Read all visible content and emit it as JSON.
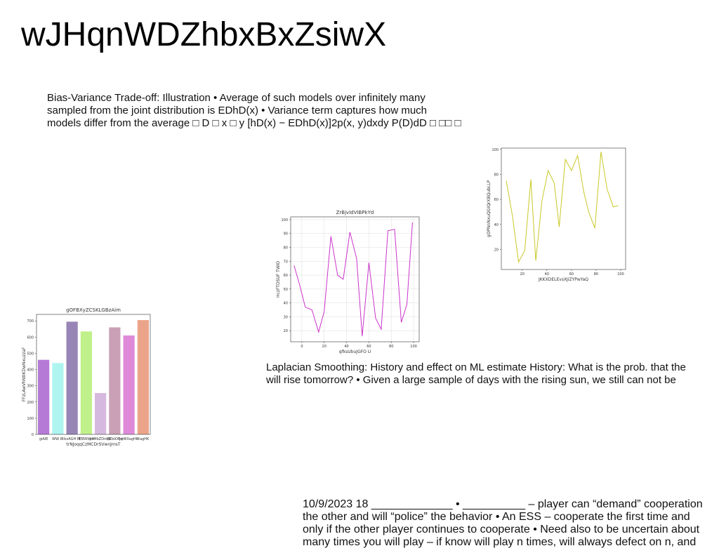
{
  "title": "wJHqnWDZhbxBxZsiwX",
  "paragraphs": [
    {
      "lines": [
        "Bias-Variance Trade-off: Illustration • Average of such models over infinitely many",
        "sampled from the joint distribution is EDhD(x) • Variance term captures how much",
        "models differ from the average □ D □ x □ y [hD(x) − EDhD(x)]2p(x, y)dxdy P(D)dD □ □□ □"
      ]
    },
    {
      "lines": [
        "Laplacian Smoothing: History and effect on ML estimate History: What is the prob. that the",
        "will rise tomorrow? • Given a large sample of days with the rising sun, we still can not be"
      ]
    },
    {
      "lines": [
        "10/9/2023 18 _____________ • __________ – player can “demand” cooperation",
        "the other  and will “police” the behavior • An ESS – cooperate the first time and",
        "only if the other player continues to cooperate • Need also to be uncertain about",
        "many times you will play – if know will play n times, will always defect on n, and"
      ]
    }
  ],
  "chart_data": [
    {
      "type": "bar",
      "title": "gOFBXyZCSKLGBzAim",
      "x_label": "trNJoqqCzMCDrSVwnJmsT",
      "y_label": "FFzLAwVhNtIKDwNxuzzaF",
      "categories": [
        "giAIE",
        "WW IB",
        "bvAGH M",
        "lEBWWdt",
        "jrrMbZDnQh",
        "slZbIOBrj",
        "jwWXagHK",
        "XagHK"
      ],
      "values": [
        460,
        440,
        695,
        635,
        255,
        660,
        610,
        705
      ],
      "colors": [
        "#b57ad6",
        "#aef5f0",
        "#9786b5",
        "#c0f08a",
        "#d6b9df",
        "#c9a0b5",
        "#de8ad9",
        "#eba489"
      ],
      "ylim": [
        0,
        740
      ],
      "yticks": [
        0,
        100,
        200,
        300,
        400,
        500,
        600,
        700
      ],
      "grid": false
    },
    {
      "type": "line",
      "title": "ZrBjvIdVIBPkYd",
      "x_label": "qfksUbuJGFO U",
      "y_label": "HczFTDSUF TWiO",
      "x": [
        -7,
        -2,
        3,
        9,
        15,
        20,
        26,
        32,
        37,
        43,
        49,
        54,
        60,
        66,
        71,
        77,
        83,
        89,
        94,
        99
      ],
      "series": [
        {
          "name": "ZrBjvIdVIBPkYd",
          "color": "#cc33cc",
          "values": [
            67,
            53,
            37,
            35,
            19,
            34,
            88,
            60,
            57,
            91,
            72,
            16,
            69,
            29,
            21,
            92,
            93,
            26,
            39,
            98
          ]
        }
      ],
      "xlim": [
        -10,
        105
      ],
      "xticks": [
        0,
        20,
        40,
        60,
        80,
        100
      ],
      "ylim": [
        12,
        102
      ],
      "yticks": [
        20,
        30,
        40,
        50,
        60,
        70,
        80,
        90,
        100
      ],
      "grid": true
    },
    {
      "type": "line",
      "x_label": "JKKXDELEvsXJiZYPwYaQ",
      "y_label": "gOPNnNxuQGIQrXBQubLLP",
      "x": [
        7,
        12,
        17,
        22,
        27,
        31,
        36,
        41,
        46,
        50,
        55,
        60,
        65,
        70,
        74,
        79,
        84,
        89,
        94,
        98
      ],
      "series": [
        {
          "name": "gOPNnNxuQGIQrXBQubLLP",
          "color": "#c8c828",
          "values": [
            75,
            47,
            10,
            19,
            76,
            11,
            59,
            83,
            73,
            38,
            92,
            83,
            95,
            66,
            50,
            37,
            98,
            68,
            54,
            55
          ]
        }
      ],
      "xlim": [
        3,
        104
      ],
      "xticks": [
        20,
        40,
        60,
        80,
        100
      ],
      "ylim": [
        4,
        101
      ],
      "yticks": [
        20,
        40,
        60,
        80,
        100
      ],
      "grid": false
    }
  ]
}
